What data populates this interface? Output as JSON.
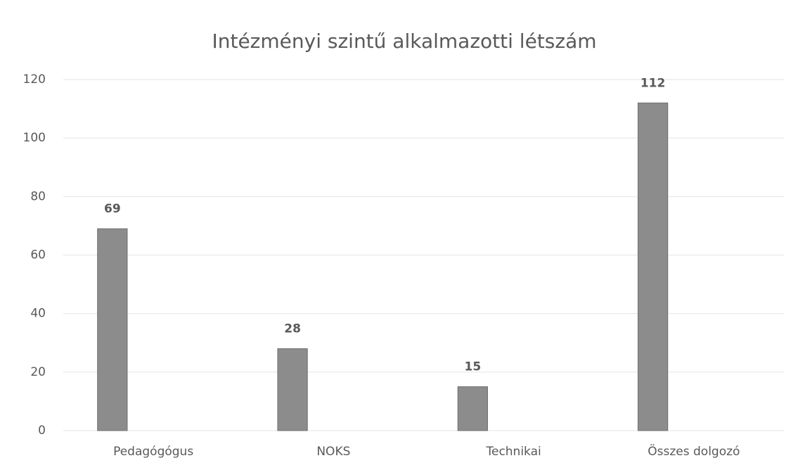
{
  "chart_data": {
    "type": "bar",
    "title": "Intézményi szintű alkalmazotti létszám",
    "categories": [
      "Pedagógógus",
      "NOKS",
      "Technikai",
      "Összes dolgozó"
    ],
    "values": [
      69,
      28,
      15,
      112
    ],
    "color": "#8c8c8c",
    "ylim": [
      0,
      120
    ],
    "yticks": [
      0,
      20,
      40,
      60,
      80,
      100,
      120
    ],
    "grid": true
  }
}
